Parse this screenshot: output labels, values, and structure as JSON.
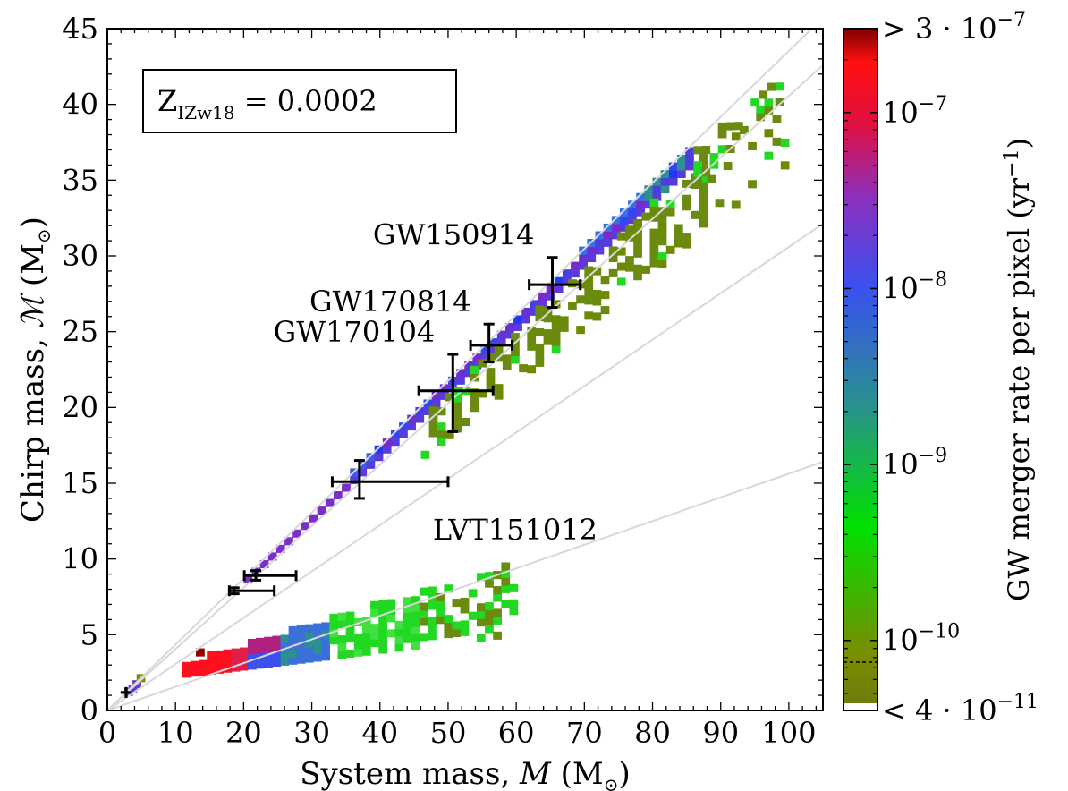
{
  "chart_data": {
    "type": "heatmap",
    "xlabel_prefix": "System mass, ",
    "xlabel_var": "M",
    "xlabel_unit": " (M",
    "xlabel_suffix": ")",
    "ylabel_prefix": "Chirp mass, ",
    "ylabel_var": "ℳ",
    "ylabel_unit": " (M",
    "ylabel_suffix": ")",
    "sun_symbol": "⊙",
    "xlim": [
      0,
      105
    ],
    "ylim": [
      0,
      45
    ],
    "xticks": [
      "0",
      "10",
      "20",
      "30",
      "40",
      "50",
      "60",
      "70",
      "80",
      "90",
      "100"
    ],
    "yticks": [
      "0",
      "5",
      "10",
      "15",
      "20",
      "25",
      "30",
      "35",
      "40",
      "45"
    ],
    "inset_label": {
      "base": "Z",
      "subscript": "IZw18",
      "value": " = 0.0002"
    },
    "reference_lines_mass_ratio": [
      1,
      0.5,
      0.2,
      0.05
    ],
    "regions": [
      {
        "name": "bbh-high-rate-band",
        "from_mass": 20,
        "to_mass": 86,
        "color": "#3d4ef0"
      },
      {
        "name": "bbh-low-rate-scatter",
        "from_mass": 48,
        "to_mass": 99,
        "color": "#6b8a10"
      },
      {
        "name": "bhns-band",
        "from_mass": 11,
        "to_mass": 60,
        "color": "#e01028"
      },
      {
        "name": "bns-clump",
        "from_mass": 2,
        "to_mass": 5,
        "color": "#6a3ac0"
      }
    ],
    "events": [
      {
        "label": "GW150914",
        "M": 65.3,
        "Mc": 28.1,
        "M_err": [
          3.4,
          4.1
        ],
        "Mc_err": [
          1.5,
          1.8
        ]
      },
      {
        "label": "GW170814",
        "M": 56.0,
        "Mc": 24.1,
        "M_err": [
          2.7,
          3.4
        ],
        "Mc_err": [
          1.1,
          1.4
        ]
      },
      {
        "label": "GW170104",
        "M": 50.7,
        "Mc": 21.1,
        "M_err": [
          5.0,
          5.9
        ],
        "Mc_err": [
          2.7,
          2.4
        ]
      },
      {
        "label": "LVT151012",
        "M": 37.0,
        "Mc": 15.1,
        "M_err": [
          4.0,
          13.0
        ],
        "Mc_err": [
          1.1,
          1.4
        ]
      },
      {
        "label": "",
        "M": 21.8,
        "Mc": 8.9,
        "M_err": [
          1.7,
          5.9
        ],
        "Mc_err": [
          0.3,
          0.33
        ]
      },
      {
        "label": "",
        "M": 18.6,
        "Mc": 7.9,
        "M_err": [
          0.7,
          5.9
        ],
        "Mc_err": [
          0.2,
          0.2
        ]
      },
      {
        "label": "",
        "M": 2.74,
        "Mc": 1.188,
        "M_err": [
          0.01,
          0.04
        ],
        "Mc_err": [
          0.002,
          0.004
        ]
      }
    ],
    "colorbar": {
      "label_prefix": "GW merger rate per pixel (yr",
      "label_exp": "−1",
      "label_suffix": ")",
      "scale": "log",
      "range": [
        4e-11,
        3e-07
      ],
      "ticks": [
        {
          "value": 3e-07,
          "base": "> 3 · 10",
          "exp": "−7"
        },
        {
          "value": 1e-07,
          "base": "10",
          "exp": "−7"
        },
        {
          "value": 1e-08,
          "base": "10",
          "exp": "−8"
        },
        {
          "value": 1e-09,
          "base": "10",
          "exp": "−9"
        },
        {
          "value": 1e-10,
          "base": "10",
          "exp": "−10"
        },
        {
          "value": 4e-11,
          "base": "< 4 · 10",
          "exp": "−11"
        }
      ],
      "stops": [
        "#6e7a10",
        "#7a8c00",
        "#00e000",
        "#2a9090",
        "#3a50f0",
        "#8a30c0",
        "#e01040",
        "#ff1010",
        "#800000"
      ]
    }
  }
}
